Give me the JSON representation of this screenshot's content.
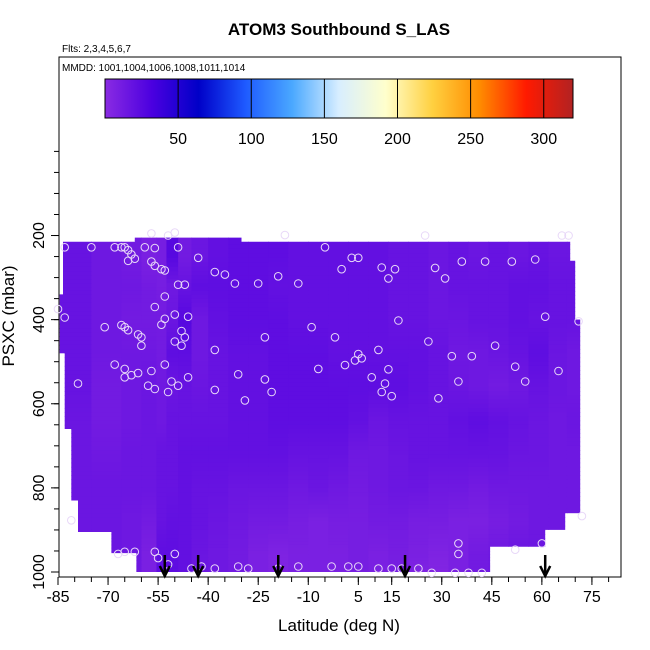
{
  "chart_data": {
    "type": "heatmap",
    "title": "ATOM3 Southbound S_LAS",
    "subtitle": "Flts: 2,3,4,5,6,7",
    "annotation": "MMDD: 1001,1004,1006,1008,1011,1014",
    "xlabel": "Latitude (deg N)",
    "ylabel": "PSXC (mbar)",
    "xlim": [
      -85,
      87
    ],
    "ylim": [
      1000,
      0
    ],
    "x_ticks": [
      -85,
      -70,
      -55,
      -40,
      -25,
      -10,
      5,
      15,
      30,
      45,
      60,
      75
    ],
    "y_ticks": [
      200,
      400,
      600,
      800,
      1000
    ],
    "colorbar": {
      "range": [
        0,
        320
      ],
      "ticks": [
        50,
        100,
        150,
        200,
        250,
        300
      ],
      "colors": [
        "#8a2be2",
        "#4b00e0",
        "#0000c8",
        "#1e5aff",
        "#4aa8ff",
        "#d8eeff",
        "#ffffcc",
        "#ffd040",
        "#ff8c00",
        "#ff1a00",
        "#b22222"
      ]
    },
    "arrow_latitudes": [
      -53,
      -43,
      -19,
      19,
      61
    ],
    "field": {
      "x_columns": [
        -81,
        -69,
        -63,
        -57,
        -54,
        -51,
        -47,
        -43,
        -37,
        -31,
        -25,
        -19,
        -13,
        -7,
        -1,
        5,
        11,
        17,
        23,
        29,
        35,
        41,
        47,
        53,
        59,
        65,
        70
      ],
      "top_pressure": 215,
      "levels": [
        {
          "p": 250,
          "v": [
            18,
            14,
            12,
            8,
            10,
            26,
            12,
            16,
            20,
            22,
            22,
            22,
            20,
            20,
            20,
            20,
            20,
            18,
            18,
            16,
            18,
            16,
            18,
            16,
            18,
            16,
            16
          ]
        },
        {
          "p": 320,
          "v": [
            18,
            14,
            14,
            12,
            10,
            14,
            18,
            22,
            22,
            22,
            22,
            20,
            20,
            20,
            20,
            20,
            20,
            18,
            18,
            16,
            18,
            18,
            18,
            20,
            20,
            18,
            18
          ]
        },
        {
          "p": 400,
          "v": [
            18,
            14,
            12,
            12,
            12,
            16,
            26,
            14,
            20,
            22,
            22,
            22,
            20,
            20,
            20,
            20,
            20,
            18,
            18,
            16,
            16,
            18,
            18,
            20,
            18,
            18,
            18
          ]
        },
        {
          "p": 480,
          "v": [
            18,
            14,
            14,
            14,
            12,
            22,
            22,
            14,
            18,
            20,
            20,
            22,
            22,
            22,
            20,
            20,
            20,
            20,
            20,
            18,
            14,
            14,
            16,
            18,
            22,
            16,
            14
          ]
        },
        {
          "p": 560,
          "v": [
            18,
            12,
            14,
            16,
            14,
            16,
            18,
            16,
            18,
            20,
            20,
            22,
            22,
            22,
            22,
            22,
            22,
            22,
            20,
            18,
            16,
            14,
            12,
            14,
            18,
            16,
            14
          ]
        },
        {
          "p": 640,
          "v": [
            16,
            12,
            14,
            16,
            14,
            18,
            18,
            18,
            18,
            20,
            20,
            22,
            22,
            22,
            22,
            20,
            16,
            18,
            18,
            18,
            20,
            22,
            20,
            18,
            16,
            14,
            16
          ]
        },
        {
          "p": 720,
          "v": [
            16,
            14,
            16,
            16,
            18,
            18,
            20,
            20,
            20,
            20,
            20,
            20,
            18,
            18,
            18,
            14,
            14,
            16,
            18,
            18,
            18,
            18,
            18,
            16,
            16,
            14,
            14
          ]
        },
        {
          "p": 800,
          "v": [
            16,
            16,
            16,
            16,
            18,
            18,
            20,
            18,
            18,
            16,
            16,
            16,
            14,
            16,
            14,
            12,
            14,
            16,
            16,
            14,
            14,
            12,
            14,
            14,
            14,
            14,
            14
          ]
        },
        {
          "p": 880,
          "v": [
            16,
            16,
            14,
            12,
            18,
            20,
            20,
            18,
            16,
            14,
            12,
            12,
            10,
            8,
            10,
            10,
            12,
            12,
            10,
            10,
            8,
            8,
            10,
            12,
            14,
            14,
            14
          ]
        },
        {
          "p": 960,
          "v": [
            16,
            16,
            14,
            8,
            22,
            22,
            20,
            16,
            14,
            12,
            8,
            6,
            8,
            8,
            8,
            10,
            8,
            10,
            8,
            6,
            8,
            12,
            14,
            16,
            16,
            16,
            16
          ]
        },
        {
          "p": 1000,
          "v": [
            16,
            16,
            14,
            8,
            22,
            22,
            20,
            16,
            14,
            12,
            8,
            6,
            8,
            8,
            8,
            10,
            8,
            10,
            6,
            4,
            8,
            12,
            14,
            16,
            16,
            16,
            16
          ]
        }
      ]
    },
    "samples": [
      {
        "x": -83,
        "y": 228
      },
      {
        "x": -75,
        "y": 228
      },
      {
        "x": -68,
        "y": 228
      },
      {
        "x": -66,
        "y": 228
      },
      {
        "x": -65,
        "y": 228
      },
      {
        "x": -64,
        "y": 235
      },
      {
        "x": -63,
        "y": 245
      },
      {
        "x": -62,
        "y": 255
      },
      {
        "x": -64,
        "y": 260
      },
      {
        "x": -59,
        "y": 228
      },
      {
        "x": -57,
        "y": 195
      },
      {
        "x": -56,
        "y": 230
      },
      {
        "x": -52,
        "y": 200
      },
      {
        "x": -50,
        "y": 193
      },
      {
        "x": -49,
        "y": 228
      },
      {
        "x": -43,
        "y": 253
      },
      {
        "x": -57,
        "y": 262
      },
      {
        "x": -56,
        "y": 272
      },
      {
        "x": -54,
        "y": 280
      },
      {
        "x": -53,
        "y": 283
      },
      {
        "x": -38,
        "y": 287
      },
      {
        "x": -35,
        "y": 293
      },
      {
        "x": -49,
        "y": 317
      },
      {
        "x": -47,
        "y": 317
      },
      {
        "x": -53,
        "y": 345
      },
      {
        "x": -56,
        "y": 370
      },
      {
        "x": -32,
        "y": 314
      },
      {
        "x": -25,
        "y": 314
      },
      {
        "x": -19,
        "y": 297
      },
      {
        "x": -17,
        "y": 199
      },
      {
        "x": -13,
        "y": 314
      },
      {
        "x": -5,
        "y": 228
      },
      {
        "x": 0,
        "y": 280
      },
      {
        "x": 3,
        "y": 253
      },
      {
        "x": 5,
        "y": 253
      },
      {
        "x": 12,
        "y": 276
      },
      {
        "x": 14,
        "y": 302
      },
      {
        "x": 16,
        "y": 280
      },
      {
        "x": 25,
        "y": 200
      },
      {
        "x": 28,
        "y": 277
      },
      {
        "x": 31,
        "y": 302
      },
      {
        "x": 36,
        "y": 262
      },
      {
        "x": 43,
        "y": 262
      },
      {
        "x": 51,
        "y": 262
      },
      {
        "x": 58,
        "y": 257
      },
      {
        "x": 66,
        "y": 200
      },
      {
        "x": 68,
        "y": 200
      },
      {
        "x": 61,
        "y": 393
      },
      {
        "x": 71,
        "y": 404
      },
      {
        "x": -85,
        "y": 375
      },
      {
        "x": -83,
        "y": 395
      },
      {
        "x": -71,
        "y": 418
      },
      {
        "x": -66,
        "y": 413
      },
      {
        "x": -65,
        "y": 418
      },
      {
        "x": -64,
        "y": 425
      },
      {
        "x": -61,
        "y": 435
      },
      {
        "x": -60,
        "y": 442
      },
      {
        "x": -60,
        "y": 462
      },
      {
        "x": -53,
        "y": 398
      },
      {
        "x": -54,
        "y": 412
      },
      {
        "x": -50,
        "y": 388
      },
      {
        "x": -46,
        "y": 393
      },
      {
        "x": -48,
        "y": 427
      },
      {
        "x": -50,
        "y": 452
      },
      {
        "x": -47,
        "y": 442
      },
      {
        "x": -48,
        "y": 462
      },
      {
        "x": -38,
        "y": 472
      },
      {
        "x": -23,
        "y": 442
      },
      {
        "x": -9,
        "y": 418
      },
      {
        "x": -2,
        "y": 442
      },
      {
        "x": 17,
        "y": 402
      },
      {
        "x": 11,
        "y": 472
      },
      {
        "x": 5,
        "y": 482
      },
      {
        "x": 6,
        "y": 492
      },
      {
        "x": 4,
        "y": 497
      },
      {
        "x": 1,
        "y": 508
      },
      {
        "x": 14,
        "y": 518
      },
      {
        "x": 26,
        "y": 452
      },
      {
        "x": 33,
        "y": 487
      },
      {
        "x": 39,
        "y": 487
      },
      {
        "x": 46,
        "y": 462
      },
      {
        "x": 52,
        "y": 512
      },
      {
        "x": -68,
        "y": 507
      },
      {
        "x": -65,
        "y": 517
      },
      {
        "x": -65,
        "y": 537
      },
      {
        "x": -63,
        "y": 532
      },
      {
        "x": -61,
        "y": 527
      },
      {
        "x": -57,
        "y": 522
      },
      {
        "x": -53,
        "y": 507
      },
      {
        "x": -46,
        "y": 537
      },
      {
        "x": -51,
        "y": 547
      },
      {
        "x": -52,
        "y": 572
      },
      {
        "x": -49,
        "y": 557
      },
      {
        "x": -58,
        "y": 557
      },
      {
        "x": -56,
        "y": 565
      },
      {
        "x": -38,
        "y": 567
      },
      {
        "x": -31,
        "y": 530
      },
      {
        "x": -29,
        "y": 592
      },
      {
        "x": -23,
        "y": 542
      },
      {
        "x": -21,
        "y": 572
      },
      {
        "x": -7,
        "y": 517
      },
      {
        "x": 9,
        "y": 537
      },
      {
        "x": 12,
        "y": 572
      },
      {
        "x": 13,
        "y": 552
      },
      {
        "x": 15,
        "y": 582
      },
      {
        "x": 29,
        "y": 587
      },
      {
        "x": 35,
        "y": 547
      },
      {
        "x": 55,
        "y": 547
      },
      {
        "x": 65,
        "y": 522
      },
      {
        "x": -79,
        "y": 552
      },
      {
        "x": -81,
        "y": 877
      },
      {
        "x": 72,
        "y": 867
      },
      {
        "x": 52,
        "y": 947
      },
      {
        "x": 60,
        "y": 932
      },
      {
        "x": 35,
        "y": 932
      },
      {
        "x": 35,
        "y": 957
      },
      {
        "x": -65,
        "y": 952
      },
      {
        "x": -67,
        "y": 957
      },
      {
        "x": -62,
        "y": 952
      },
      {
        "x": -56,
        "y": 952
      },
      {
        "x": -50,
        "y": 957
      },
      {
        "x": -55,
        "y": 967
      },
      {
        "x": -52,
        "y": 982
      },
      {
        "x": -45,
        "y": 992
      },
      {
        "x": -42,
        "y": 987
      },
      {
        "x": -38,
        "y": 992
      },
      {
        "x": -31,
        "y": 987
      },
      {
        "x": -28,
        "y": 992
      },
      {
        "x": -19,
        "y": 992
      },
      {
        "x": -13,
        "y": 987
      },
      {
        "x": -3,
        "y": 987
      },
      {
        "x": 2,
        "y": 987
      },
      {
        "x": 5,
        "y": 987
      },
      {
        "x": 11,
        "y": 992
      },
      {
        "x": 15,
        "y": 992
      },
      {
        "x": 18,
        "y": 992
      },
      {
        "x": 23,
        "y": 992
      },
      {
        "x": 27,
        "y": 1002
      },
      {
        "x": 34,
        "y": 1002
      },
      {
        "x": 38,
        "y": 1002
      },
      {
        "x": 42,
        "y": 1002
      }
    ]
  }
}
